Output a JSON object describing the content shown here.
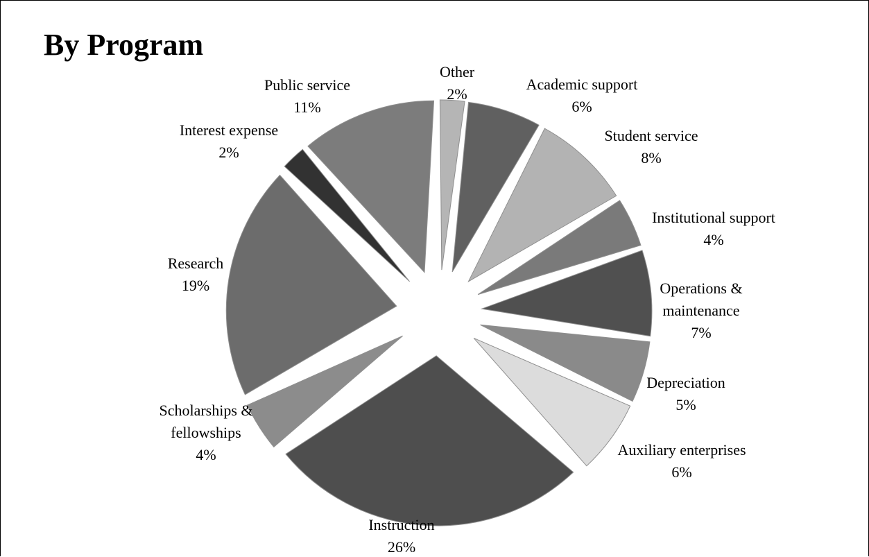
{
  "chart_data": {
    "type": "pie",
    "title": "By Program",
    "exploded": true,
    "unit": "%",
    "slices": [
      {
        "label": "Other",
        "value": 2,
        "color": "#b5b5b5"
      },
      {
        "label": "Academic  support",
        "value": 6,
        "color": "#606060"
      },
      {
        "label": "Student service",
        "value": 8,
        "color": "#b3b3b3"
      },
      {
        "label": "Institutional support",
        "value": 4,
        "color": "#7a7a7a"
      },
      {
        "label": "Operations & maintenance",
        "value": 7,
        "color": "#505050"
      },
      {
        "label": "Depreciation",
        "value": 5,
        "color": "#8a8a8a"
      },
      {
        "label": "Auxiliary enterprises",
        "value": 6,
        "color": "#dcdcdc"
      },
      {
        "label": "Instruction",
        "value": 26,
        "color": "#4e4e4e"
      },
      {
        "label": "Scholarships & fellowships",
        "value": 4,
        "color": "#8c8c8c"
      },
      {
        "label": "Research",
        "value": 19,
        "color": "#6c6c6c"
      },
      {
        "label": "Interest expense",
        "value": 2,
        "color": "#323232"
      },
      {
        "label": "Public service",
        "value": 11,
        "color": "#7c7c7c"
      }
    ]
  }
}
